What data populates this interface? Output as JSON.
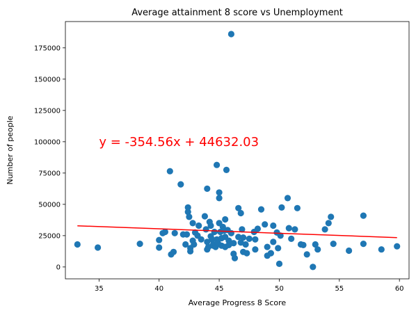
{
  "chart_data": {
    "type": "scatter",
    "title": "Average attainment 8 score vs Unemployment",
    "xlabel": "Average Progress 8 Score",
    "ylabel": "Number of people",
    "xlim": [
      32.2,
      60.8
    ],
    "ylim": [
      -9500,
      196000
    ],
    "x_ticks": [
      35,
      40,
      45,
      50,
      55,
      60
    ],
    "y_ticks": [
      0,
      25000,
      50000,
      75000,
      100000,
      125000,
      150000,
      175000
    ],
    "grid": false,
    "point_color": "#1f77b4",
    "line_color": "#ff0000",
    "annotation": {
      "text": "y = -354.56x + 44632.03",
      "x": 35,
      "y": 100000,
      "color": "#ff0000"
    },
    "regression": {
      "slope": -354.56,
      "intercept": 44632.03,
      "x_range": [
        33.2,
        59.8
      ]
    },
    "points": [
      [
        33.2,
        18000
      ],
      [
        34.9,
        15500
      ],
      [
        38.4,
        18500
      ],
      [
        40.0,
        21500
      ],
      [
        40.0,
        15500
      ],
      [
        40.3,
        27000
      ],
      [
        40.5,
        28000
      ],
      [
        40.9,
        76500
      ],
      [
        41.0,
        10000
      ],
      [
        41.2,
        12000
      ],
      [
        41.3,
        27000
      ],
      [
        41.8,
        66000
      ],
      [
        42.0,
        26000
      ],
      [
        42.2,
        18000
      ],
      [
        42.3,
        26000
      ],
      [
        42.4,
        47500
      ],
      [
        42.4,
        44000
      ],
      [
        42.5,
        40000
      ],
      [
        42.6,
        15000
      ],
      [
        42.6,
        12500
      ],
      [
        42.8,
        35000
      ],
      [
        42.8,
        21000
      ],
      [
        42.9,
        18000
      ],
      [
        43.0,
        27500
      ],
      [
        43.2,
        25000
      ],
      [
        43.3,
        33000
      ],
      [
        43.5,
        22000
      ],
      [
        43.8,
        40500
      ],
      [
        43.9,
        30000
      ],
      [
        44.0,
        62500
      ],
      [
        44.0,
        20000
      ],
      [
        44.0,
        14000
      ],
      [
        44.1,
        16000
      ],
      [
        44.2,
        36000
      ],
      [
        44.3,
        33000
      ],
      [
        44.3,
        24500
      ],
      [
        44.4,
        22000
      ],
      [
        44.5,
        18000
      ],
      [
        44.5,
        17000
      ],
      [
        44.6,
        28000
      ],
      [
        44.7,
        16000
      ],
      [
        44.8,
        81500
      ],
      [
        44.8,
        22000
      ],
      [
        44.9,
        19000
      ],
      [
        45.0,
        59500
      ],
      [
        45.0,
        55000
      ],
      [
        45.0,
        35000
      ],
      [
        45.1,
        28000
      ],
      [
        45.2,
        23000
      ],
      [
        45.2,
        17000
      ],
      [
        45.3,
        32000
      ],
      [
        45.4,
        29000
      ],
      [
        45.5,
        38000
      ],
      [
        45.5,
        24000
      ],
      [
        45.5,
        16000
      ],
      [
        45.6,
        77500
      ],
      [
        45.7,
        29500
      ],
      [
        45.8,
        21000
      ],
      [
        45.8,
        17500
      ],
      [
        46.0,
        186000
      ],
      [
        46.0,
        27000
      ],
      [
        46.2,
        19000
      ],
      [
        46.2,
        10500
      ],
      [
        46.3,
        7000
      ],
      [
        46.6,
        47000
      ],
      [
        46.6,
        24000
      ],
      [
        46.8,
        43000
      ],
      [
        46.8,
        19500
      ],
      [
        46.9,
        30000
      ],
      [
        47.0,
        23500
      ],
      [
        47.0,
        12000
      ],
      [
        47.2,
        18000
      ],
      [
        47.3,
        11000
      ],
      [
        47.5,
        22500
      ],
      [
        47.9,
        28000
      ],
      [
        48.0,
        22000
      ],
      [
        48.0,
        14000
      ],
      [
        48.2,
        30500
      ],
      [
        48.5,
        46000
      ],
      [
        48.8,
        34000
      ],
      [
        49.0,
        9000
      ],
      [
        49.0,
        16000
      ],
      [
        49.3,
        11000
      ],
      [
        49.5,
        33000
      ],
      [
        49.5,
        20000
      ],
      [
        49.8,
        27500
      ],
      [
        49.9,
        15000
      ],
      [
        50.0,
        2500
      ],
      [
        50.1,
        25000
      ],
      [
        50.2,
        47500
      ],
      [
        50.7,
        55000
      ],
      [
        50.8,
        31000
      ],
      [
        51.0,
        22500
      ],
      [
        51.3,
        30000
      ],
      [
        51.5,
        47000
      ],
      [
        51.8,
        18000
      ],
      [
        52.0,
        17500
      ],
      [
        52.3,
        10000
      ],
      [
        52.8,
        0
      ],
      [
        53.0,
        18000
      ],
      [
        53.2,
        14000
      ],
      [
        53.8,
        30000
      ],
      [
        54.1,
        35000
      ],
      [
        54.3,
        40000
      ],
      [
        54.5,
        18500
      ],
      [
        55.8,
        13000
      ],
      [
        57.0,
        41000
      ],
      [
        57.0,
        18500
      ],
      [
        58.5,
        14000
      ],
      [
        59.8,
        16500
      ]
    ]
  }
}
